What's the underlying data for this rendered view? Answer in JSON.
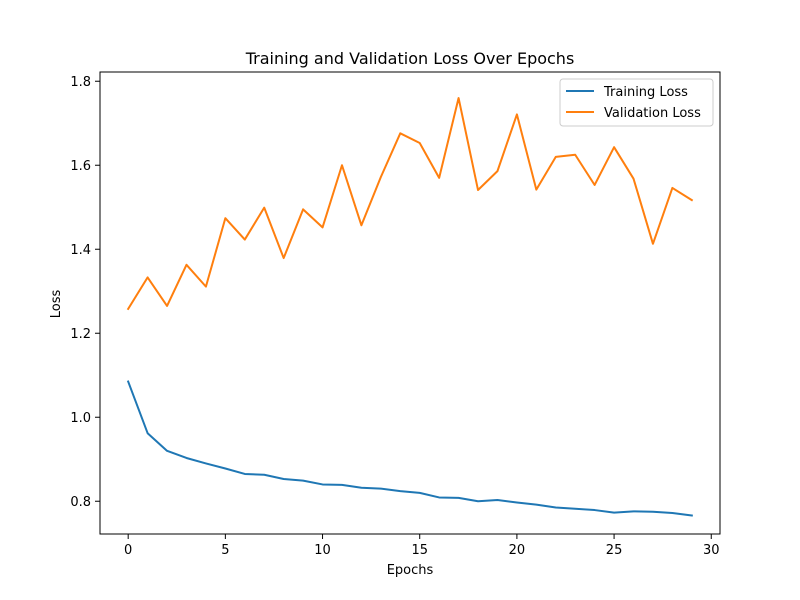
{
  "chart_data": {
    "type": "line",
    "title": "Training and Validation Loss Over Epochs",
    "xlabel": "Epochs",
    "ylabel": "Loss",
    "xlim": [
      -1.45,
      30.45
    ],
    "ylim": [
      0.722,
      1.822
    ],
    "xticks": [
      0,
      5,
      10,
      15,
      20,
      25,
      30
    ],
    "xtick_labels": [
      "0",
      "5",
      "10",
      "15",
      "20",
      "25",
      "30"
    ],
    "yticks": [
      0.8,
      1.0,
      1.2,
      1.4,
      1.6,
      1.8
    ],
    "ytick_labels": [
      "0.8",
      "1.0",
      "1.2",
      "1.4",
      "1.6",
      "1.8"
    ],
    "grid": false,
    "legend_position": "top-right",
    "x": [
      0,
      1,
      2,
      3,
      4,
      5,
      6,
      7,
      8,
      9,
      10,
      11,
      12,
      13,
      14,
      15,
      16,
      17,
      18,
      19,
      20,
      21,
      22,
      23,
      24,
      25,
      26,
      27,
      28,
      29
    ],
    "series": [
      {
        "name": "Training Loss",
        "color": "#1f77b4",
        "values": [
          1.085,
          0.962,
          0.92,
          0.903,
          0.89,
          0.878,
          0.865,
          0.863,
          0.853,
          0.849,
          0.84,
          0.839,
          0.832,
          0.83,
          0.824,
          0.82,
          0.809,
          0.808,
          0.8,
          0.803,
          0.797,
          0.792,
          0.785,
          0.782,
          0.779,
          0.773,
          0.776,
          0.775,
          0.772,
          0.766
        ]
      },
      {
        "name": "Validation Loss",
        "color": "#ff7f0e",
        "values": [
          1.258,
          1.333,
          1.265,
          1.363,
          1.311,
          1.474,
          1.423,
          1.499,
          1.379,
          1.495,
          1.452,
          1.6,
          1.457,
          1.572,
          1.676,
          1.653,
          1.57,
          1.76,
          1.541,
          1.586,
          1.721,
          1.542,
          1.62,
          1.625,
          1.553,
          1.643,
          1.568,
          1.413,
          1.546,
          1.517
        ]
      }
    ]
  }
}
